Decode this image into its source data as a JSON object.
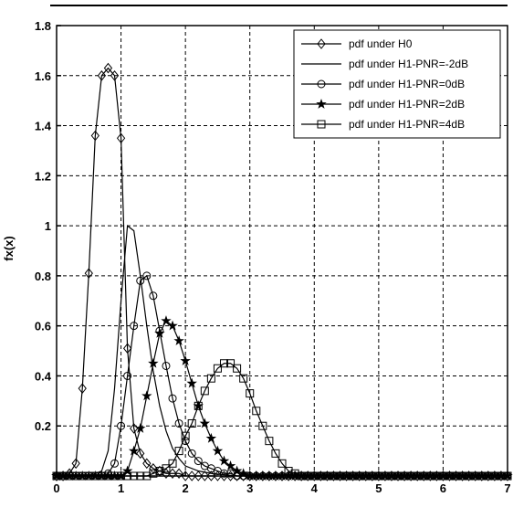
{
  "chart_data": {
    "type": "line",
    "title": "",
    "xlabel": "",
    "ylabel": "fx(x)",
    "xlim": [
      0,
      7
    ],
    "ylim": [
      0,
      1.8
    ],
    "xticks": [
      "0",
      "1",
      "2",
      "3",
      "4",
      "5",
      "6",
      "7"
    ],
    "yticks": [
      "0.2",
      "0.4",
      "0.6",
      "0.8",
      "1",
      "1.2",
      "1.4",
      "1.6",
      "1.8"
    ],
    "grid": true,
    "legend_position": "top-right",
    "marker_step": 0.1,
    "series": [
      {
        "name": "pdf under H0",
        "marker": "diamond",
        "color": "#000000",
        "x": [
          0.0,
          0.1,
          0.2,
          0.3,
          0.4,
          0.5,
          0.6,
          0.7,
          0.8,
          0.9,
          1.0,
          1.1,
          1.2,
          1.3,
          1.4,
          1.5,
          1.6,
          1.7,
          1.8,
          1.9,
          2.0,
          2.1,
          2.2,
          2.3,
          2.4,
          2.5
        ],
        "y": [
          0,
          0,
          0.01,
          0.05,
          0.35,
          0.81,
          1.36,
          1.6,
          1.63,
          1.6,
          1.35,
          0.51,
          0.19,
          0.09,
          0.05,
          0.03,
          0.02,
          0.01,
          0.01,
          0.01,
          0,
          0,
          0,
          0,
          0,
          0
        ]
      },
      {
        "name": "pdf under H1-PNR=-2dB",
        "marker": "none",
        "color": "#000000",
        "x": [
          0.0,
          0.3,
          0.5,
          0.7,
          0.8,
          0.9,
          1.0,
          1.1,
          1.2,
          1.3,
          1.4,
          1.5,
          1.6,
          1.7,
          1.8,
          1.9,
          2.0,
          2.2,
          2.4,
          2.6,
          2.8,
          3.0,
          7.0
        ],
        "y": [
          0,
          0,
          0,
          0.02,
          0.1,
          0.35,
          0.7,
          1.0,
          0.98,
          0.8,
          0.6,
          0.42,
          0.28,
          0.18,
          0.11,
          0.07,
          0.04,
          0.02,
          0.01,
          0.005,
          0,
          0,
          0
        ]
      },
      {
        "name": "pdf under H1-PNR=0dB",
        "marker": "circle",
        "color": "#000000",
        "x": [
          0.0,
          0.7,
          0.8,
          0.9,
          1.0,
          1.1,
          1.2,
          1.3,
          1.4,
          1.5,
          1.6,
          1.7,
          1.8,
          1.9,
          2.0,
          2.1,
          2.2,
          2.3,
          2.4,
          2.5,
          2.6,
          2.7,
          2.8,
          2.9,
          3.0,
          3.1,
          3.2
        ],
        "y": [
          0,
          0,
          0.01,
          0.05,
          0.2,
          0.4,
          0.6,
          0.78,
          0.8,
          0.72,
          0.58,
          0.44,
          0.31,
          0.21,
          0.14,
          0.09,
          0.06,
          0.04,
          0.03,
          0.02,
          0.01,
          0.01,
          0,
          0,
          0,
          0,
          0
        ]
      },
      {
        "name": "pdf under H1-PNR=2dB",
        "marker": "star",
        "color": "#000000",
        "x": [
          0.0,
          1.0,
          1.1,
          1.2,
          1.3,
          1.4,
          1.5,
          1.6,
          1.7,
          1.8,
          1.9,
          2.0,
          2.1,
          2.2,
          2.3,
          2.4,
          2.5,
          2.6,
          2.7,
          2.8,
          2.9,
          3.0,
          3.1,
          3.2,
          3.3,
          3.4
        ],
        "y": [
          0,
          0,
          0.02,
          0.1,
          0.19,
          0.32,
          0.45,
          0.57,
          0.62,
          0.6,
          0.54,
          0.46,
          0.37,
          0.28,
          0.21,
          0.15,
          0.1,
          0.06,
          0.04,
          0.02,
          0.01,
          0,
          0,
          0,
          0,
          0
        ]
      },
      {
        "name": "pdf under H1-PNR=4dB",
        "marker": "square",
        "color": "#000000",
        "x": [
          0.0,
          1.2,
          1.3,
          1.4,
          1.5,
          1.6,
          1.7,
          1.8,
          1.9,
          2.0,
          2.1,
          2.2,
          2.3,
          2.4,
          2.5,
          2.6,
          2.7,
          2.8,
          2.9,
          3.0,
          3.1,
          3.2,
          3.3,
          3.4,
          3.5,
          3.6,
          3.7,
          3.8,
          3.9,
          4.0
        ],
        "y": [
          0,
          0,
          0,
          0,
          0.01,
          0.02,
          0.03,
          0.05,
          0.1,
          0.16,
          0.21,
          0.28,
          0.34,
          0.39,
          0.43,
          0.45,
          0.45,
          0.43,
          0.39,
          0.33,
          0.26,
          0.2,
          0.14,
          0.09,
          0.05,
          0.02,
          0.01,
          0,
          0,
          0
        ]
      }
    ]
  }
}
